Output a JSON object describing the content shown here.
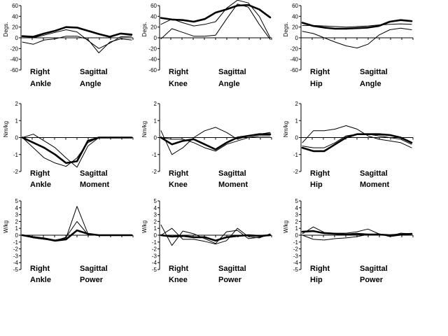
{
  "chart_data": [
    {
      "type": "line",
      "caption": [
        "Right",
        "Sagittal",
        "Ankle",
        "Angle"
      ],
      "ylabel": "Degs.",
      "ylim": [
        -60,
        60
      ],
      "yticks": [
        "60",
        "40",
        "20",
        "0",
        "-20",
        "-40",
        "-60"
      ],
      "x": [
        0,
        10,
        20,
        30,
        40,
        50,
        60,
        70,
        80,
        90,
        100
      ],
      "series": [
        {
          "style": "thick",
          "values": [
            3,
            2,
            8,
            13,
            20,
            19,
            13,
            7,
            2,
            8,
            6
          ]
        },
        {
          "style": "thin",
          "values": [
            4,
            0,
            5,
            10,
            15,
            11,
            -5,
            -20,
            -10,
            2,
            3
          ]
        },
        {
          "style": "thin",
          "values": [
            -8,
            -12,
            -4,
            -2,
            3,
            3,
            -3,
            -28,
            -8,
            -2,
            -4
          ]
        }
      ]
    },
    {
      "type": "line",
      "caption": [
        "Right",
        "Sagittal",
        "Knee",
        "Angle"
      ],
      "ylabel": "Degs.",
      "ylim": [
        -60,
        60
      ],
      "yticks": [
        "60",
        "40",
        "20",
        "0",
        "-20",
        "-40",
        "-60"
      ],
      "x": [
        0,
        10,
        20,
        30,
        40,
        50,
        60,
        70,
        80,
        90,
        100
      ],
      "series": [
        {
          "style": "thick",
          "values": [
            37,
            34,
            33,
            30,
            35,
            47,
            53,
            60,
            61,
            53,
            38
          ]
        },
        {
          "style": "thin",
          "values": [
            25,
            35,
            28,
            22,
            25,
            30,
            55,
            70,
            65,
            40,
            0
          ]
        },
        {
          "style": "thin",
          "values": [
            -2,
            17,
            10,
            3,
            3,
            5,
            35,
            63,
            57,
            25,
            -3
          ]
        }
      ]
    },
    {
      "type": "line",
      "caption": [
        "Right",
        "Sagittal",
        "Hip",
        "Angle"
      ],
      "ylabel": "Degs.",
      "ylim": [
        -60,
        60
      ],
      "yticks": [
        "60",
        "40",
        "20",
        "0",
        "-20",
        "-40",
        "-60"
      ],
      "x": [
        0,
        10,
        20,
        30,
        40,
        50,
        60,
        70,
        80,
        90,
        100
      ],
      "series": [
        {
          "style": "thick",
          "values": [
            28,
            22,
            19,
            17,
            17,
            18,
            19,
            22,
            30,
            33,
            31
          ]
        },
        {
          "style": "thin",
          "values": [
            23,
            23,
            22,
            21,
            20,
            21,
            22,
            24,
            25,
            26,
            25
          ]
        },
        {
          "style": "thin",
          "values": [
            12,
            8,
            0,
            -8,
            -15,
            -19,
            -12,
            5,
            15,
            18,
            15
          ]
        }
      ]
    },
    {
      "type": "line",
      "caption": [
        "Right",
        "Sagittal",
        "Ankle",
        "Moment"
      ],
      "ylabel": "Nm/kg",
      "ylim": [
        -2,
        2
      ],
      "yticks": [
        "2",
        "1",
        "0",
        "-1",
        "-2"
      ],
      "x": [
        0,
        10,
        20,
        30,
        40,
        50,
        60,
        70,
        80,
        90,
        100
      ],
      "series": [
        {
          "style": "thick",
          "values": [
            0,
            -0.3,
            -0.6,
            -1.0,
            -1.5,
            -1.4,
            -0.2,
            0,
            0,
            0,
            0
          ]
        },
        {
          "style": "thin",
          "values": [
            0,
            0.2,
            -0.2,
            -0.6,
            -1.2,
            -1.75,
            -0.5,
            0,
            0,
            0,
            0
          ]
        },
        {
          "style": "thin",
          "values": [
            0,
            -0.6,
            -1.2,
            -1.5,
            -1.7,
            -1.2,
            -0.3,
            0,
            0,
            0,
            0
          ]
        }
      ]
    },
    {
      "type": "line",
      "caption": [
        "Right",
        "Sagittal",
        "Knee",
        "Moment"
      ],
      "ylabel": "Nm/kg",
      "ylim": [
        -2,
        2
      ],
      "yticks": [
        "2",
        "1",
        "0",
        "-1",
        "-2"
      ],
      "x": [
        0,
        10,
        20,
        30,
        40,
        50,
        60,
        70,
        80,
        90,
        100
      ],
      "series": [
        {
          "style": "thick",
          "values": [
            0,
            -0.4,
            -0.2,
            -0.1,
            -0.4,
            -0.7,
            -0.3,
            0,
            0.1,
            0.2,
            0.2
          ]
        },
        {
          "style": "thin",
          "values": [
            0.4,
            -1.0,
            -0.6,
            0,
            0.4,
            0.6,
            0.3,
            -0.1,
            0.1,
            0.2,
            0.3
          ]
        },
        {
          "style": "thin",
          "values": [
            0,
            -0.1,
            -0.1,
            -0.3,
            -0.6,
            -0.8,
            -0.4,
            -0.2,
            0,
            0.1,
            0.1
          ]
        }
      ]
    },
    {
      "type": "line",
      "caption": [
        "Right",
        "Sagittal",
        "Hip",
        "Moment"
      ],
      "ylabel": "Nm/kg",
      "ylim": [
        -2,
        2
      ],
      "yticks": [
        "2",
        "1",
        "0",
        "-1",
        "-2"
      ],
      "x": [
        0,
        10,
        20,
        30,
        40,
        50,
        60,
        70,
        80,
        90,
        100
      ],
      "series": [
        {
          "style": "thick",
          "values": [
            -0.6,
            -0.8,
            -0.8,
            -0.4,
            0,
            0.2,
            0.2,
            0.2,
            0.15,
            0,
            -0.3
          ]
        },
        {
          "style": "thin",
          "values": [
            -0.3,
            0.4,
            0.4,
            0.5,
            0.7,
            0.5,
            0.1,
            -0.1,
            -0.2,
            -0.3,
            -0.6
          ]
        },
        {
          "style": "thin",
          "values": [
            -0.5,
            -0.6,
            -0.6,
            -0.3,
            0.1,
            0.2,
            0.2,
            0.1,
            0,
            -0.1,
            -0.4
          ]
        }
      ]
    },
    {
      "type": "line",
      "caption": [
        "Right",
        "Sagittal",
        "Ankle",
        "Power"
      ],
      "ylabel": "W/kg",
      "ylim": [
        -5,
        5
      ],
      "yticks": [
        "5",
        "4",
        "3",
        "2",
        "1",
        "0",
        "-1",
        "-2",
        "-3",
        "-4",
        "-5"
      ],
      "x": [
        0,
        10,
        20,
        30,
        40,
        50,
        60,
        70,
        80,
        90,
        100
      ],
      "series": [
        {
          "style": "thick",
          "values": [
            0,
            -0.3,
            -0.5,
            -0.8,
            -0.6,
            0.7,
            0.2,
            0,
            0,
            0,
            0
          ]
        },
        {
          "style": "thin",
          "values": [
            0,
            -0.2,
            -0.4,
            -0.7,
            -0.4,
            4.2,
            0.2,
            0,
            0,
            0,
            0
          ]
        },
        {
          "style": "thin",
          "values": [
            0,
            -0.4,
            -0.6,
            -0.8,
            -0.3,
            2.0,
            0.1,
            0,
            0,
            0,
            0
          ]
        }
      ]
    },
    {
      "type": "line",
      "caption": [
        "Right",
        "Sagittal",
        "Knee",
        "Power"
      ],
      "ylabel": "W/kg",
      "ylim": [
        -5,
        5
      ],
      "yticks": [
        "5",
        "4",
        "3",
        "2",
        "1",
        "0",
        "-1",
        "-2",
        "-3",
        "-4",
        "-5"
      ],
      "x": [
        0,
        10,
        20,
        30,
        40,
        50,
        60,
        70,
        80,
        90,
        100
      ],
      "series": [
        {
          "style": "thick",
          "values": [
            0,
            -0.2,
            -0.1,
            -0.3,
            -0.3,
            -0.8,
            -0.3,
            -0.1,
            0,
            -0.1,
            0
          ]
        },
        {
          "style": "thin",
          "values": [
            1.5,
            -1.5,
            0.6,
            0.2,
            -0.5,
            -1.2,
            0.5,
            0.7,
            -0.5,
            -0.3,
            0
          ]
        },
        {
          "style": "thin",
          "values": [
            0,
            1.0,
            -0.6,
            -0.6,
            -0.9,
            -1.3,
            -0.8,
            1.0,
            -0.2,
            -0.4,
            0.2
          ]
        }
      ]
    },
    {
      "type": "line",
      "caption": [
        "Right",
        "Sagittal",
        "Hip",
        "Power"
      ],
      "ylabel": "W/kg",
      "ylim": [
        -5,
        5
      ],
      "yticks": [
        "5",
        "4",
        "3",
        "2",
        "1",
        "0",
        "-1",
        "-2",
        "-3",
        "-4",
        "-5"
      ],
      "x": [
        0,
        10,
        20,
        30,
        40,
        50,
        60,
        70,
        80,
        90,
        100
      ],
      "series": [
        {
          "style": "thick",
          "values": [
            0.5,
            0.6,
            0.3,
            0.2,
            0.1,
            0.2,
            0.1,
            0.1,
            0,
            0.1,
            0.2
          ]
        },
        {
          "style": "thin",
          "values": [
            0.2,
            1.2,
            0.4,
            0.3,
            0.3,
            0.5,
            0.9,
            0.2,
            -0.1,
            0.3,
            0.2
          ]
        },
        {
          "style": "thin",
          "values": [
            0,
            -0.6,
            -0.7,
            -0.5,
            -0.4,
            -0.2,
            0.1,
            0.2,
            -0.2,
            0,
            0
          ]
        }
      ]
    }
  ]
}
